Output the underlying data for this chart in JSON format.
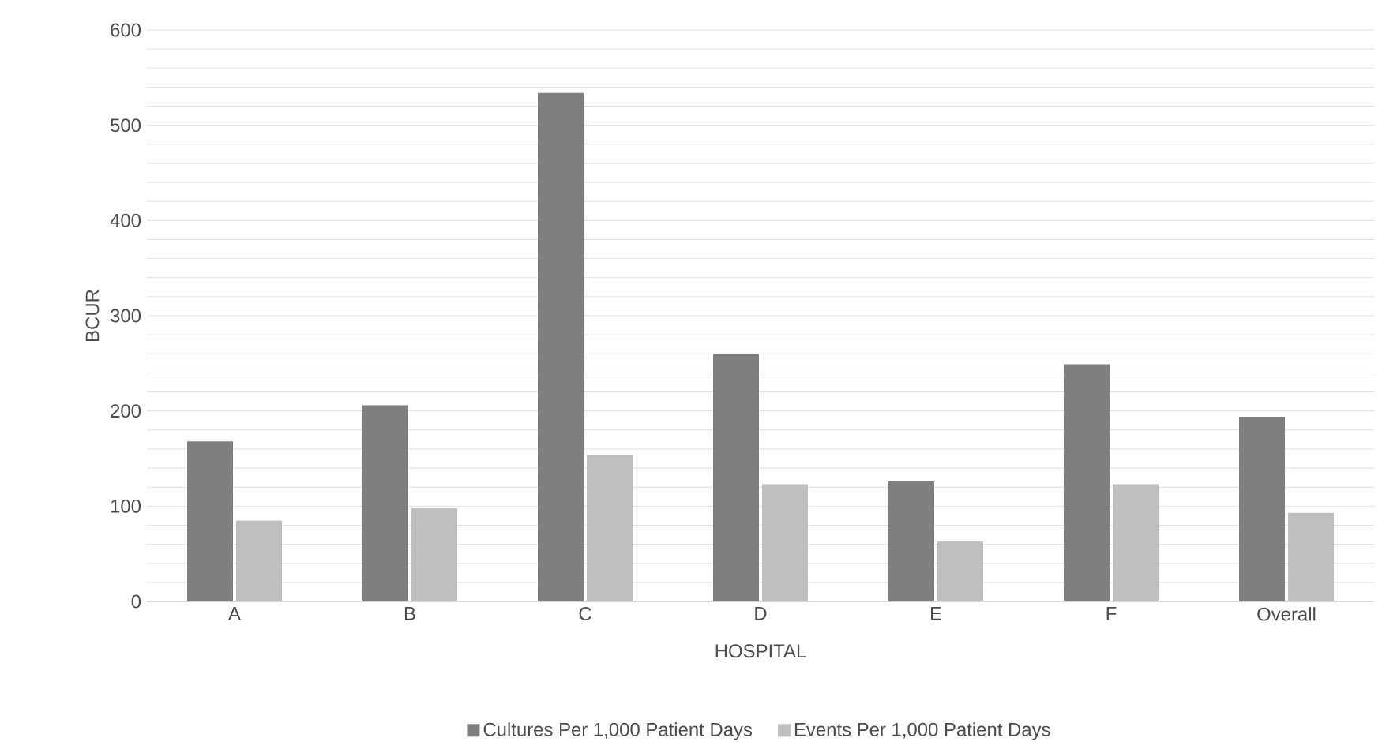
{
  "chart_data": {
    "type": "bar",
    "xlabel": "HOSPITAL",
    "ylabel": "BCUR",
    "categories": [
      "A",
      "B",
      "C",
      "D",
      "E",
      "F",
      "Overall"
    ],
    "series": [
      {
        "name": "Cultures Per 1,000 Patient Days",
        "color": "#7f7f7f",
        "values": [
          168,
          206,
          534,
          260,
          126,
          249,
          194
        ]
      },
      {
        "name": "Events Per 1,000 Patient Days",
        "color": "#bfbfbf",
        "values": [
          85,
          98,
          154,
          123,
          63,
          123,
          93
        ]
      }
    ],
    "ylim": [
      0,
      600
    ],
    "yticks": [
      0,
      {
        "value": 20,
        "label": null
      },
      {
        "value": 40,
        "label": null
      },
      {
        "value": 60,
        "label": null
      },
      {
        "value": 80,
        "label": null
      },
      100,
      {
        "value": 120,
        "label": null
      },
      {
        "value": 140,
        "label": null
      },
      {
        "value": 160,
        "label": null
      },
      {
        "value": 180,
        "label": null
      },
      200,
      {
        "value": 220,
        "label": null
      },
      {
        "value": 240,
        "label": null
      },
      {
        "value": 260,
        "label": null
      },
      {
        "value": 280,
        "label": null
      },
      300,
      {
        "value": 320,
        "label": null
      },
      {
        "value": 340,
        "label": null
      },
      {
        "value": 360,
        "label": null
      },
      {
        "value": 380,
        "label": null
      },
      400,
      {
        "value": 420,
        "label": null
      },
      {
        "value": 440,
        "label": null
      },
      {
        "value": 460,
        "label": null
      },
      {
        "value": 480,
        "label": null
      },
      500,
      {
        "value": 520,
        "label": null
      },
      {
        "value": 540,
        "label": null
      },
      {
        "value": 560,
        "label": null
      },
      {
        "value": 580,
        "label": null
      },
      600
    ],
    "grid": "y",
    "legend": "bottom"
  }
}
